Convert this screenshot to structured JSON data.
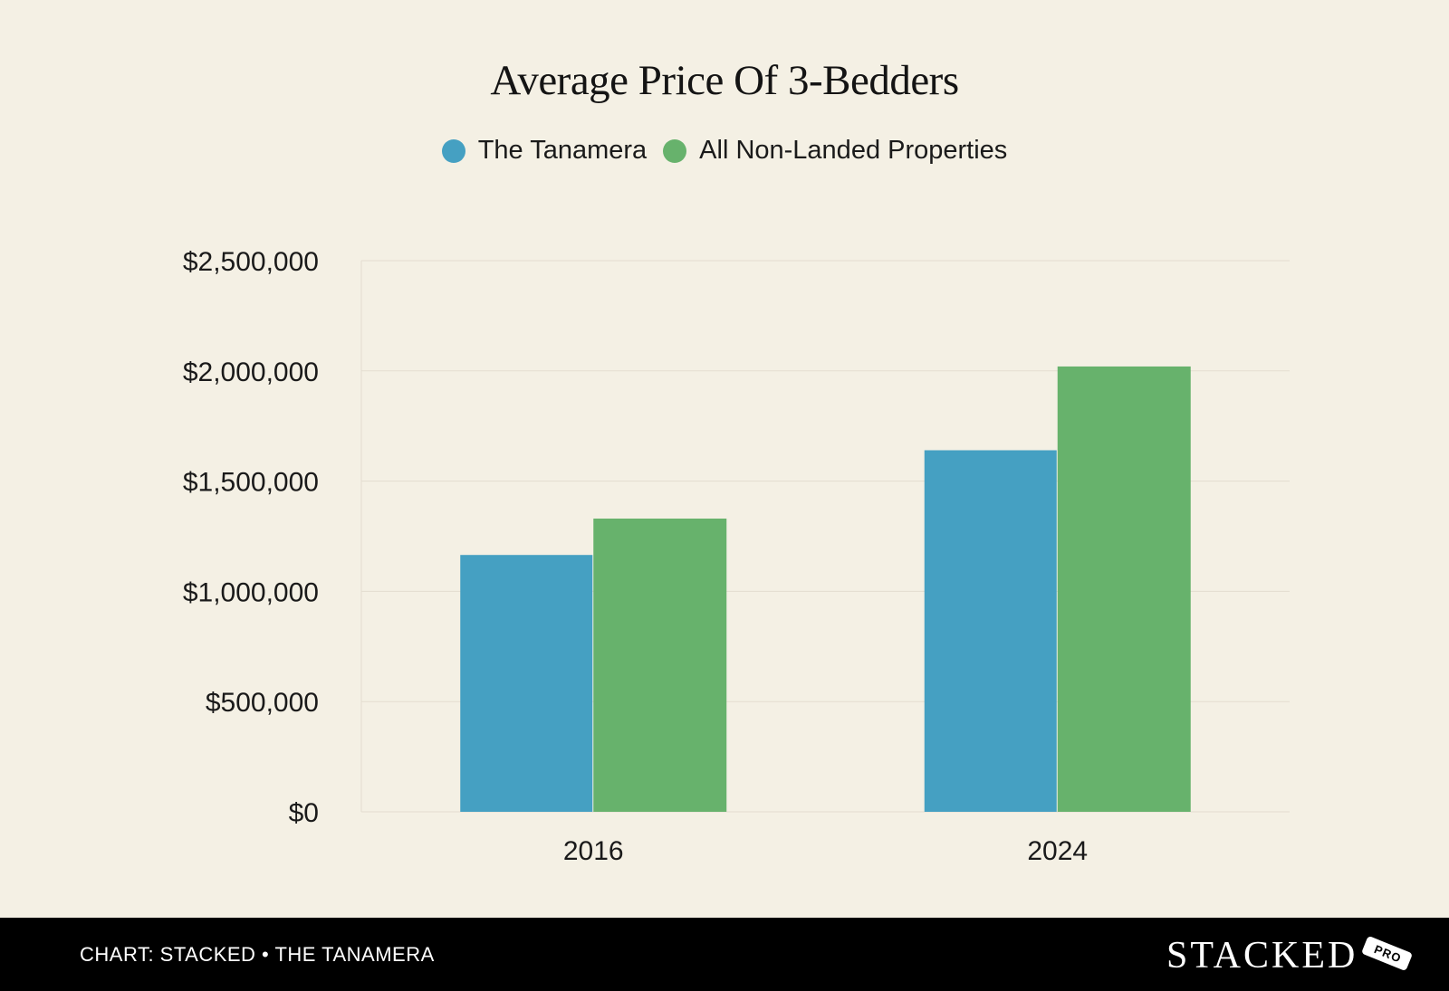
{
  "chart_data": {
    "type": "bar",
    "title": "Average Price Of 3-Bedders",
    "categories": [
      "2016",
      "2024"
    ],
    "series": [
      {
        "name": "The Tanamera",
        "color": "#45a0c2",
        "values": [
          1165000,
          1640000
        ]
      },
      {
        "name": "All Non-Landed Properties",
        "color": "#67b26c",
        "values": [
          1330000,
          2020000
        ]
      }
    ],
    "xlabel": "",
    "ylabel": "",
    "ylim": [
      0,
      2500000
    ],
    "yticks": [
      0,
      500000,
      1000000,
      1500000,
      2000000,
      2500000
    ],
    "ytick_labels": [
      "$0",
      "$500,000",
      "$1,000,000",
      "$1,500,000",
      "$2,000,000",
      "$2,500,000"
    ],
    "grid": true,
    "legend_position": "top-center"
  },
  "footer": {
    "credit": "CHART: STACKED • THE TANAMERA",
    "brand": "STACKED",
    "brand_tag": "PRO"
  },
  "colors": {
    "background": "#f4f0e4",
    "footer": "#000000",
    "gridline": "#e3ddd0"
  }
}
